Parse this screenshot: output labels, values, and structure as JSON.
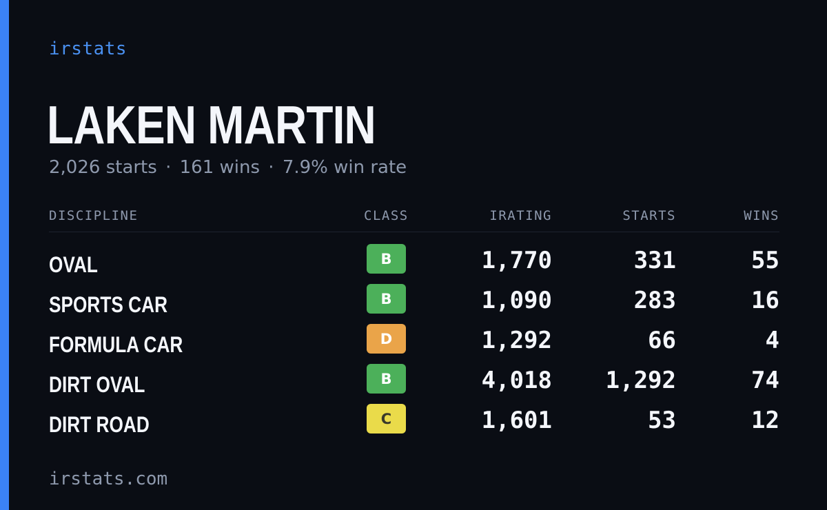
{
  "brand": "irstats",
  "player": {
    "name": "LAKEN MARTIN",
    "starts_text": "2,026 starts",
    "wins_text": "161 wins",
    "win_rate_text": "7.9% win rate",
    "separator": "·"
  },
  "table": {
    "headers": {
      "discipline": "DISCIPLINE",
      "class": "CLASS",
      "irating": "IRATING",
      "starts": "STARTS",
      "wins": "WINS"
    },
    "rows": [
      {
        "discipline": "OVAL",
        "class": "B",
        "class_color": "#4cb05a",
        "irating": "1,770",
        "starts": "331",
        "wins": "55"
      },
      {
        "discipline": "SPORTS CAR",
        "class": "B",
        "class_color": "#4cb05a",
        "irating": "1,090",
        "starts": "283",
        "wins": "16"
      },
      {
        "discipline": "FORMULA CAR",
        "class": "D",
        "class_color": "#eaa449",
        "irating": "1,292",
        "starts": "66",
        "wins": "4"
      },
      {
        "discipline": "DIRT OVAL",
        "class": "B",
        "class_color": "#4cb05a",
        "irating": "4,018",
        "starts": "1,292",
        "wins": "74"
      },
      {
        "discipline": "DIRT ROAD",
        "class": "C",
        "class_color": "#eadb4a",
        "irating": "1,601",
        "starts": "53",
        "wins": "12"
      }
    ]
  },
  "footer": "irstats.com",
  "colors": {
    "accent": "#3b82f6",
    "background": "#0a0d14",
    "muted_text": "#8e99ad",
    "primary_text": "#f4f6fb"
  }
}
